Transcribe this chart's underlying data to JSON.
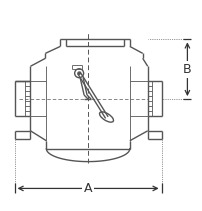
{
  "bg_color": "#ffffff",
  "line_color": "#555555",
  "dim_color": "#333333",
  "lw": 1.0,
  "thin_lw": 0.6,
  "fig_w": 2.02,
  "fig_h": 2.11,
  "label_A": "A",
  "label_B": "B",
  "xlim": [
    0,
    202
  ],
  "ylim": [
    0,
    211
  ]
}
